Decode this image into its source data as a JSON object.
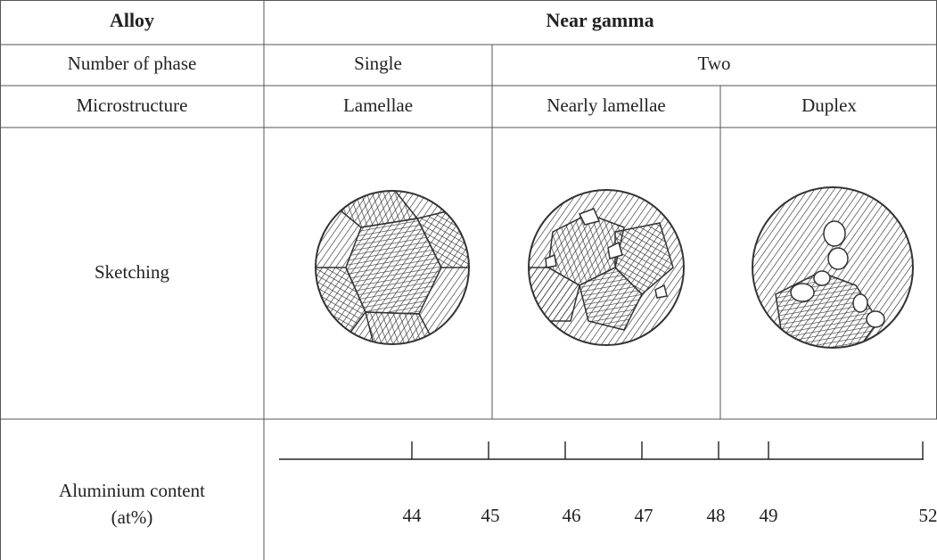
{
  "table": {
    "header": [
      "Alloy",
      "Near gamma"
    ],
    "rows": [
      [
        "Number of phase",
        "Single",
        "Two"
      ],
      [
        "Microstructure",
        "Lamellae",
        "Nearly lamellae",
        "Duplex"
      ],
      [
        "Sketching"
      ],
      [
        [
          "Aluminium content",
          "(at%)"
        ]
      ]
    ],
    "aluminium_content": [
      44,
      45,
      46,
      47,
      48,
      49,
      52
    ]
  }
}
